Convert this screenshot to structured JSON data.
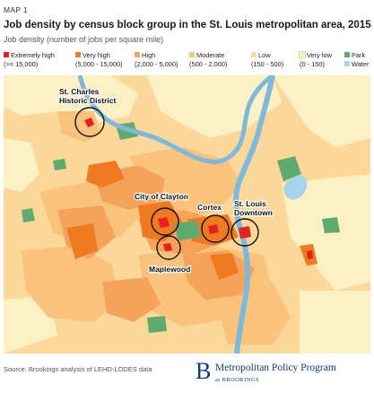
{
  "header": {
    "map_label": "MAP 1",
    "title": "Job density by census block group in the St. Louis metropolitan area, 2015",
    "subtitle": "Job density (number of jobs per square  mile)"
  },
  "legend": {
    "items": [
      {
        "label": "Extremely high",
        "range": "(>= 15,000)",
        "color": "#e5201f"
      },
      {
        "label": "Very high",
        "range": "(5,000 - 15,000)",
        "color": "#f07d26"
      },
      {
        "label": "High",
        "range": "(2,000 - 5,000)",
        "color": "#f6a75c"
      },
      {
        "label": "Moderate",
        "range": "(500 - 2,000)",
        "color": "#f9c57f"
      },
      {
        "label": "Low",
        "range": "(150 - 500)",
        "color": "#fbdc9c"
      },
      {
        "label": "Very low",
        "range": "(0 - 150)",
        "color": "#fdf1c4"
      },
      {
        "label": "Park",
        "range": "",
        "color": "#5faa6e"
      },
      {
        "label": "Water",
        "range": "",
        "color": "#a6d5ea"
      }
    ]
  },
  "map": {
    "labels": {
      "st_charles": [
        "St. Charles",
        "Historic District"
      ],
      "clayton": "City of Clayton",
      "cortex": "Cortex",
      "downtown": [
        "St. Louis",
        "Downtown"
      ],
      "maplewood": "Maplewood"
    }
  },
  "footer": {
    "source": "Source: Brookings analysis of LEHD-LODES data",
    "brand_letter": "B",
    "brand_name": "Metropolitan Policy Program",
    "brand_at": "at BROOKINGS"
  },
  "colors": {
    "brand_blue": "#0b3d7a",
    "river": "#7cb9dd"
  }
}
